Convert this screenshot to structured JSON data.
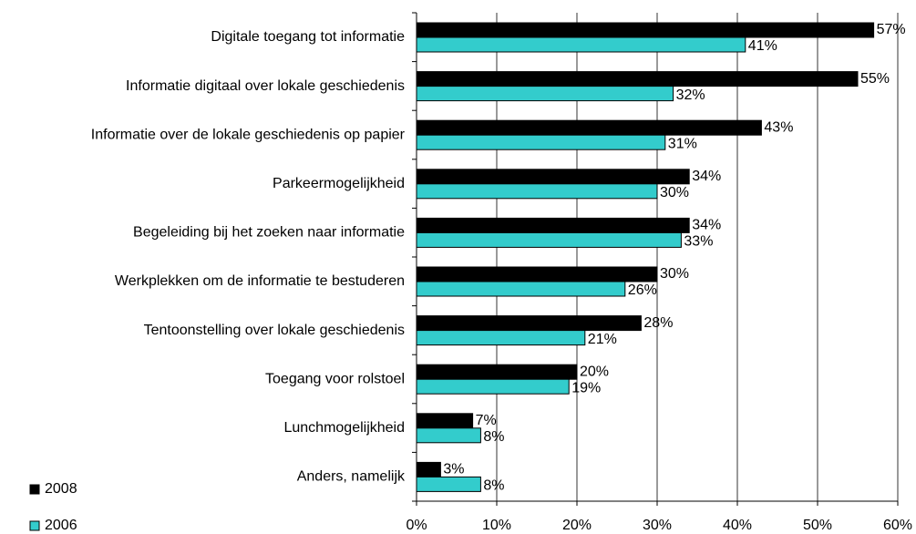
{
  "chart_data": {
    "type": "bar",
    "orientation": "horizontal",
    "categories": [
      "Digitale toegang tot informatie",
      "Informatie digitaal over lokale geschiedenis",
      "Informatie over de lokale geschiedenis op papier",
      "Parkeermogelijkheid",
      "Begeleiding bij het zoeken naar informatie",
      "Werkplekken om de informatie te bestuderen",
      "Tentoonstelling over lokale geschiedenis",
      "Toegang voor rolstoel",
      "Lunchmogelijkheid",
      "Anders, namelijk"
    ],
    "series": [
      {
        "name": "2008",
        "color": "#000000",
        "values": [
          57,
          55,
          43,
          34,
          34,
          30,
          28,
          20,
          7,
          3
        ],
        "value_labels": [
          "57%",
          "55%",
          "43%",
          "34%",
          "34%",
          "30%",
          "28%",
          "20%",
          "7%",
          "3%"
        ]
      },
      {
        "name": "2006",
        "color": "#33cccc",
        "values": [
          41,
          32,
          31,
          30,
          33,
          26,
          21,
          19,
          8,
          8
        ],
        "value_labels": [
          "41%",
          "32%",
          "31%",
          "30%",
          "33%",
          "26%",
          "21%",
          "19%",
          "8%",
          "8%"
        ]
      }
    ],
    "xlim": [
      0,
      60
    ],
    "xticks": [
      {
        "value": 0,
        "label": "0%"
      },
      {
        "value": 10,
        "label": "10%"
      },
      {
        "value": 20,
        "label": "20%"
      },
      {
        "value": 30,
        "label": "30%"
      },
      {
        "value": 40,
        "label": "40%"
      },
      {
        "value": 50,
        "label": "50%"
      },
      {
        "value": 60,
        "label": "60%"
      }
    ],
    "grid": true,
    "legend": "bottom-left"
  }
}
